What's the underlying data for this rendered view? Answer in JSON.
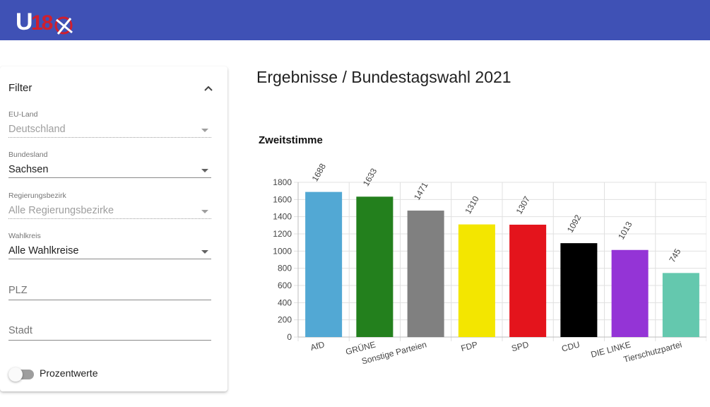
{
  "header": {
    "logo_text": "U18",
    "background": "#3f51b5"
  },
  "filter": {
    "title": "Filter",
    "fields": [
      {
        "label": "EU-Land",
        "value": "Deutschland",
        "disabled": true
      },
      {
        "label": "Bundesland",
        "value": "Sachsen",
        "disabled": false
      },
      {
        "label": "Regierungsbezirk",
        "value": "Alle Regierungsbezirke",
        "disabled": true
      },
      {
        "label": "Wahlkreis",
        "value": "Alle Wahlkreise",
        "disabled": false
      }
    ],
    "plz_placeholder": "PLZ",
    "stadt_placeholder": "Stadt",
    "toggle_label": "Prozentwerte",
    "toggle_on": false
  },
  "page_title": "Ergebnisse / Bundestagswahl 2021",
  "chart_data": {
    "type": "bar",
    "title": "Zweitstimme",
    "categories": [
      "AfD",
      "GRÜNE",
      "Sonstige Parteien",
      "FDP",
      "SPD",
      "CDU",
      "DIE LINKE",
      "Tierschutzpartei"
    ],
    "values": [
      1688,
      1633,
      1471,
      1310,
      1307,
      1092,
      1013,
      745
    ],
    "colors": [
      "#52a8d4",
      "#23801d",
      "#808080",
      "#f3e600",
      "#e4141c",
      "#000000",
      "#9434d6",
      "#64c8ae"
    ],
    "ylim": [
      0,
      1800
    ],
    "yticks": [
      0,
      200,
      400,
      600,
      800,
      1000,
      1200,
      1400,
      1600,
      1800
    ],
    "grid": true,
    "xlabel": "",
    "ylabel": ""
  }
}
